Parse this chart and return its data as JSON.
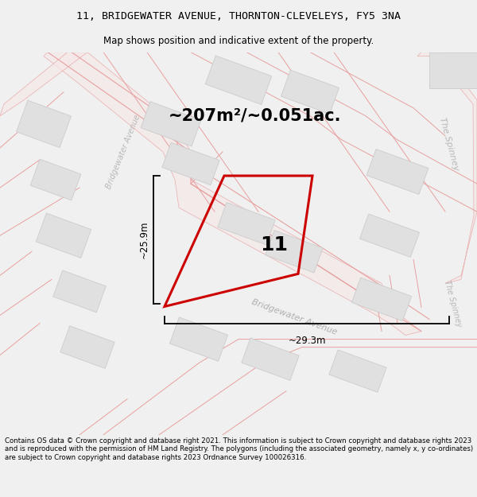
{
  "title": "11, BRIDGEWATER AVENUE, THORNTON-CLEVELEYS, FY5 3NA",
  "subtitle": "Map shows position and indicative extent of the property.",
  "footer": "Contains OS data © Crown copyright and database right 2021. This information is subject to Crown copyright and database rights 2023 and is reproduced with the permission of HM Land Registry. The polygons (including the associated geometry, namely x, y co-ordinates) are subject to Crown copyright and database rights 2023 Ordnance Survey 100026316.",
  "area_label": "~207m²/~0.051ac.",
  "plot_number": "11",
  "dim_vertical": "~25.9m",
  "dim_horizontal": "~29.3m",
  "road_label_main": "Bridgewater Avenue",
  "road_label_left": "Bridgewater Avenue",
  "road_label_right_upper": "The Spinney",
  "road_label_right_lower": "The Spinney",
  "bg_color": "#f0f0f0",
  "map_bg": "#ffffff",
  "plot_color": "#cc0000",
  "road_line_color": "#e8a0a0",
  "road_fill_color": "#f5e8e8",
  "building_color": "#e0e0e0",
  "building_edge": "#cccccc",
  "title_fontsize": 9.5,
  "subtitle_fontsize": 8.5,
  "footer_fontsize": 6.2,
  "area_fontsize": 15,
  "number_fontsize": 18,
  "dim_fontsize": 8.5,
  "road_label_fontsize": 8,
  "road_label_fontsize_sm": 7
}
